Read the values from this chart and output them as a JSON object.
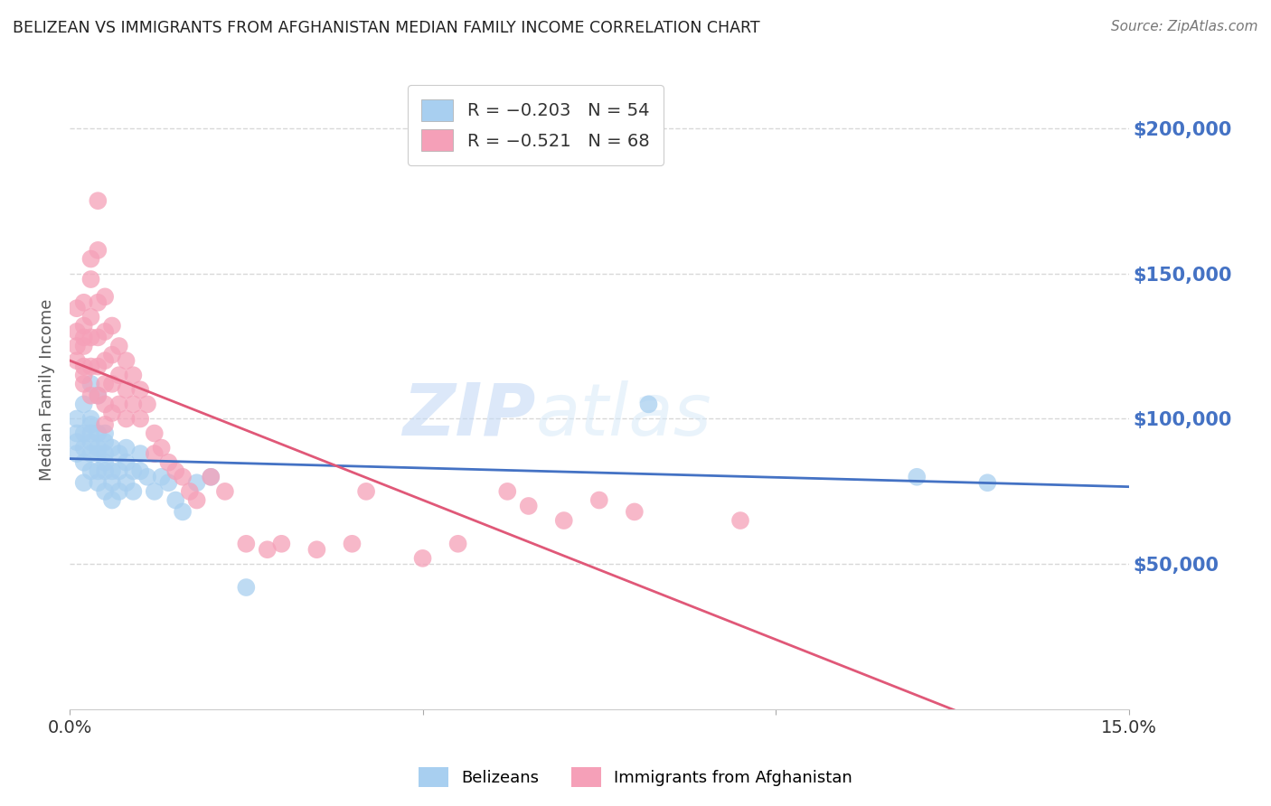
{
  "title": "BELIZEAN VS IMMIGRANTS FROM AFGHANISTAN MEDIAN FAMILY INCOME CORRELATION CHART",
  "source": "Source: ZipAtlas.com",
  "ylabel": "Median Family Income",
  "ytick_labels": [
    "$50,000",
    "$100,000",
    "$150,000",
    "$200,000"
  ],
  "ytick_values": [
    50000,
    100000,
    150000,
    200000
  ],
  "ylim": [
    0,
    220000
  ],
  "xlim": [
    0.0,
    0.15
  ],
  "series_belizean": {
    "color": "#a8cff0",
    "line_color": "#4472c4",
    "x": [
      0.001,
      0.001,
      0.001,
      0.001,
      0.002,
      0.002,
      0.002,
      0.002,
      0.002,
      0.003,
      0.003,
      0.003,
      0.003,
      0.003,
      0.003,
      0.003,
      0.004,
      0.004,
      0.004,
      0.004,
      0.004,
      0.004,
      0.005,
      0.005,
      0.005,
      0.005,
      0.005,
      0.005,
      0.006,
      0.006,
      0.006,
      0.006,
      0.007,
      0.007,
      0.007,
      0.008,
      0.008,
      0.008,
      0.009,
      0.009,
      0.01,
      0.01,
      0.011,
      0.012,
      0.013,
      0.014,
      0.015,
      0.016,
      0.018,
      0.02,
      0.025,
      0.082,
      0.12,
      0.13
    ],
    "y": [
      95000,
      100000,
      88000,
      92000,
      105000,
      90000,
      85000,
      78000,
      95000,
      112000,
      98000,
      92000,
      88000,
      82000,
      95000,
      100000,
      108000,
      95000,
      88000,
      82000,
      90000,
      78000,
      95000,
      88000,
      82000,
      75000,
      92000,
      85000,
      90000,
      82000,
      78000,
      72000,
      88000,
      82000,
      75000,
      90000,
      85000,
      78000,
      82000,
      75000,
      88000,
      82000,
      80000,
      75000,
      80000,
      78000,
      72000,
      68000,
      78000,
      80000,
      42000,
      105000,
      80000,
      78000
    ]
  },
  "series_afghanistan": {
    "color": "#f5a0b8",
    "line_color": "#e05878",
    "x": [
      0.001,
      0.001,
      0.001,
      0.001,
      0.002,
      0.002,
      0.002,
      0.002,
      0.002,
      0.002,
      0.002,
      0.003,
      0.003,
      0.003,
      0.003,
      0.003,
      0.003,
      0.004,
      0.004,
      0.004,
      0.004,
      0.004,
      0.004,
      0.005,
      0.005,
      0.005,
      0.005,
      0.005,
      0.005,
      0.006,
      0.006,
      0.006,
      0.006,
      0.007,
      0.007,
      0.007,
      0.008,
      0.008,
      0.008,
      0.009,
      0.009,
      0.01,
      0.01,
      0.011,
      0.012,
      0.012,
      0.013,
      0.014,
      0.015,
      0.016,
      0.017,
      0.018,
      0.02,
      0.022,
      0.025,
      0.028,
      0.03,
      0.035,
      0.04,
      0.042,
      0.05,
      0.055,
      0.062,
      0.065,
      0.07,
      0.075,
      0.08,
      0.095
    ],
    "y": [
      130000,
      125000,
      138000,
      120000,
      140000,
      132000,
      128000,
      118000,
      125000,
      115000,
      112000,
      155000,
      148000,
      135000,
      128000,
      118000,
      108000,
      175000,
      158000,
      140000,
      128000,
      118000,
      108000,
      142000,
      130000,
      120000,
      112000,
      105000,
      98000,
      132000,
      122000,
      112000,
      102000,
      125000,
      115000,
      105000,
      120000,
      110000,
      100000,
      115000,
      105000,
      110000,
      100000,
      105000,
      95000,
      88000,
      90000,
      85000,
      82000,
      80000,
      75000,
      72000,
      80000,
      75000,
      57000,
      55000,
      57000,
      55000,
      57000,
      75000,
      52000,
      57000,
      75000,
      70000,
      65000,
      72000,
      68000,
      65000
    ]
  },
  "watermark_zip": "ZIP",
  "watermark_atlas": "atlas",
  "background_color": "#ffffff",
  "grid_color": "#d8d8d8"
}
